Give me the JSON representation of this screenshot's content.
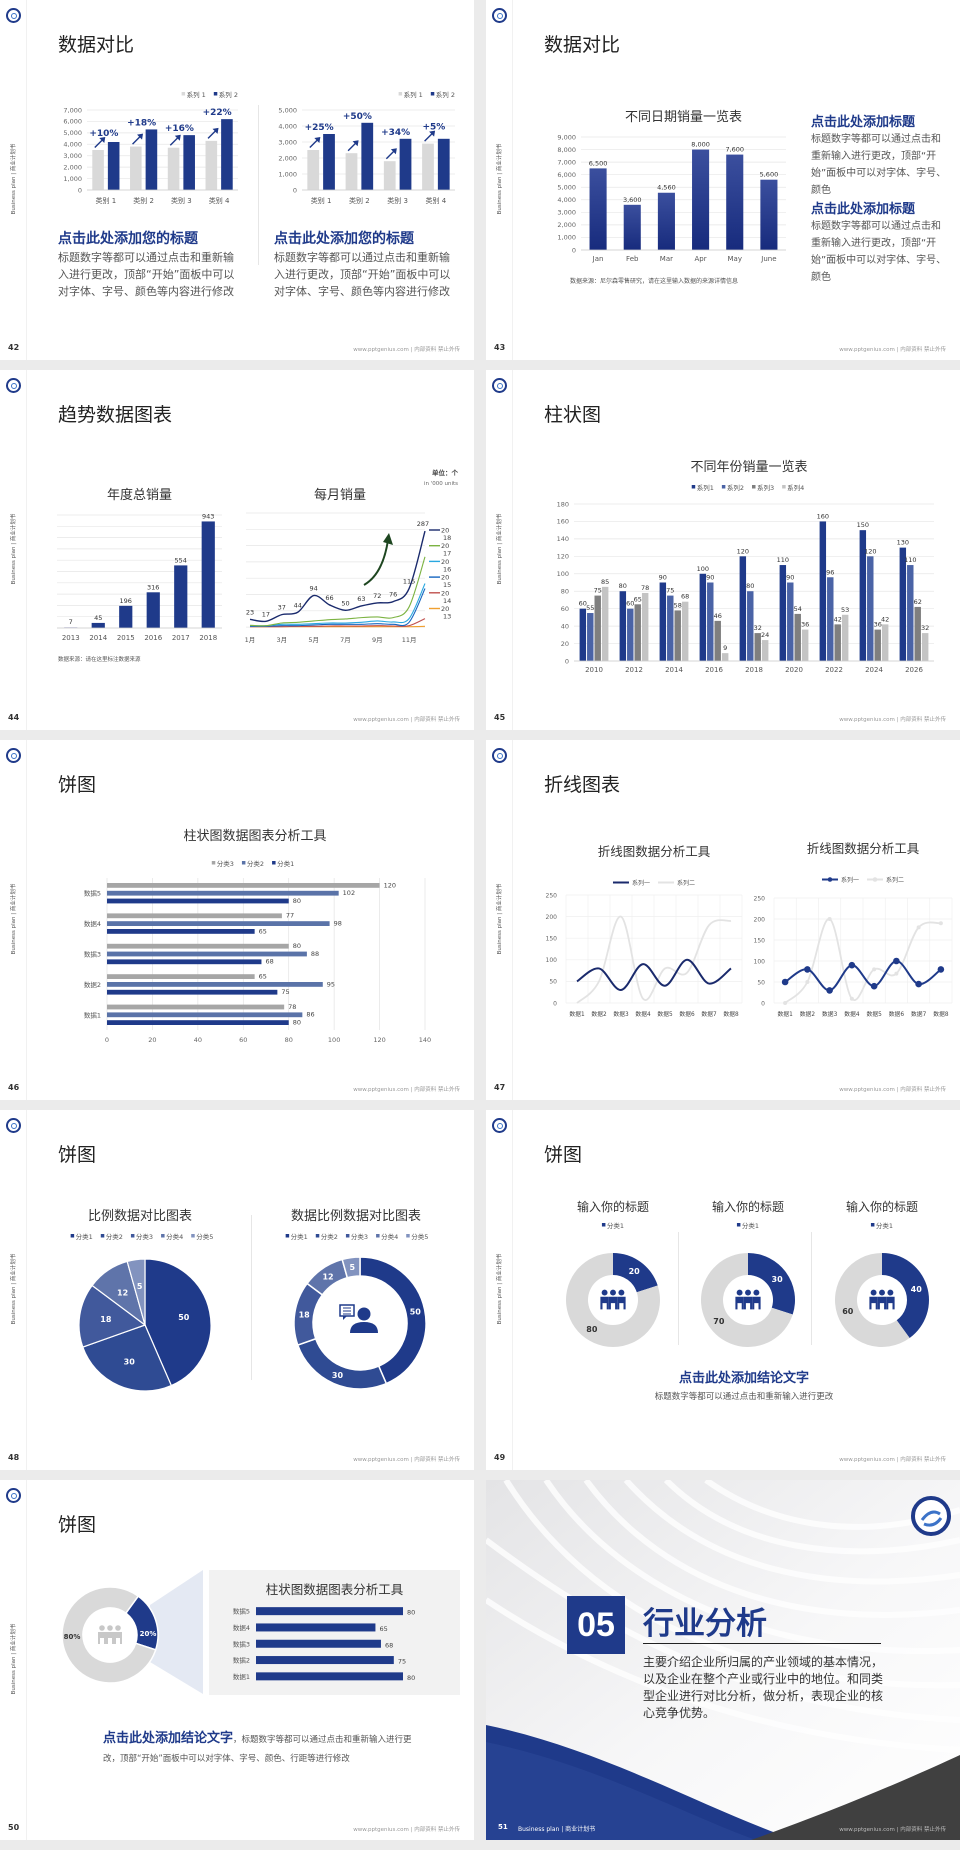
{
  "common": {
    "side_label": "Business plan | 商业计划书",
    "footer": "www.pptgenius.com | 内部资料 禁止外传",
    "accent": "#1f3a8a"
  },
  "slide42": {
    "page": "42",
    "title": "数据对比",
    "blocks": [
      {
        "heading": "点击此处添加您的标题",
        "body": "标题数字等都可以通过点击和重新输入进行更改，顶部“开始”面板中可以对字体、字号、颜色等内容进行修改"
      },
      {
        "heading": "点击此处添加您的标题",
        "body": "标题数字等都可以通过点击和重新输入进行更改，顶部“开始”面板中可以对字体、字号、颜色等内容进行修改"
      }
    ]
  },
  "slide43": {
    "page": "43",
    "title": "数据对比",
    "source": "数据来源：尼尔森零售研究，请在这里输入数据的来源详情信息",
    "blocks": [
      {
        "heading": "点击此处添加标题",
        "body": "标题数字等都可以通过点击和重新输入进行更改，顶部“开始”面板中可以对字体、字号、颜色"
      },
      {
        "heading": "点击此处添加标题",
        "body": "标题数字等都可以通过点击和重新输入进行更改，顶部“开始”面板中可以对字体、字号、颜色"
      }
    ]
  },
  "slide44": {
    "page": "44",
    "title": "趋势数据图表",
    "source": "数据来源：请在这里标注数据来源",
    "unit": "单位：个",
    "unit_en": "in '000 units"
  },
  "slide45": {
    "page": "45",
    "title": "柱状图"
  },
  "slide46": {
    "page": "46",
    "title": "饼图"
  },
  "slide47": {
    "page": "47",
    "title": "折线图表"
  },
  "slide48": {
    "page": "48",
    "title": "饼图"
  },
  "slide49": {
    "page": "49",
    "title": "饼图",
    "heading": "点击此处添加结论文字",
    "body": "标题数字等都可以通过点击和重新输入进行更改"
  },
  "slide50": {
    "page": "50",
    "title": "饼图",
    "heading": "点击此处添加结论文字",
    "body": "，标题数字等都可以通过点击和重新输入进行更改，顶部“开始”面板中可以对字体、字号、颜色、行距等进行修改"
  },
  "slide51": {
    "page": "51",
    "number": "05",
    "title": "行业分析",
    "body": "主要介绍企业所归属的产业领域的基本情况，以及企业在整个产业或行业中的地位。和同类型企业进行对比分析，做分析，表现企业的核心竞争优势。",
    "footer_left": "Business plan | 商业计划书"
  },
  "chart_data": [
    {
      "type": "bar",
      "categories": [
        "类别 1",
        "类别 2",
        "类别 3",
        "类别 4"
      ],
      "series": [
        {
          "name": "系列 1",
          "values": [
            3500,
            3800,
            3700,
            4300
          ]
        },
        {
          "name": "系列 2",
          "values": [
            4200,
            5300,
            4800,
            6200
          ]
        }
      ],
      "annotations": [
        "+10%",
        "+18%",
        "+16%",
        "+22%"
      ],
      "ylim": [
        0,
        7000
      ],
      "yticks": [
        0,
        1000,
        2000,
        3000,
        4000,
        5000,
        6000,
        7000
      ],
      "colors": [
        "#d9d9d9",
        "#1f3a8a"
      ],
      "legend": "top-right"
    },
    {
      "type": "bar",
      "categories": [
        "类别 1",
        "类别 2",
        "类别 3",
        "类别 4"
      ],
      "series": [
        {
          "name": "系列 1",
          "values": [
            2500,
            2300,
            1800,
            2900
          ]
        },
        {
          "name": "系列 2",
          "values": [
            3500,
            4200,
            3200,
            3200
          ]
        }
      ],
      "annotations": [
        "+25%",
        "+50%",
        "+34%",
        "+5%"
      ],
      "ylim": [
        0,
        5000
      ],
      "yticks": [
        0,
        1000,
        2000,
        3000,
        4000,
        5000
      ],
      "colors": [
        "#d9d9d9",
        "#1f3a8a"
      ],
      "legend": "top-right"
    },
    {
      "type": "bar",
      "title": "不同日期销量一览表",
      "categories": [
        "Jan",
        "Feb",
        "Mar",
        "Apr",
        "May",
        "June"
      ],
      "values": [
        6500,
        3600,
        4560,
        8000,
        7600,
        5600
      ],
      "ylim": [
        0,
        9000
      ],
      "yticks": [
        0,
        1000,
        2000,
        3000,
        4000,
        5000,
        6000,
        7000,
        8000,
        9000
      ],
      "data_labels": true
    },
    {
      "type": "bar",
      "title": "年度总销量",
      "categories": [
        "2013",
        "2014",
        "2015",
        "2016",
        "2017",
        "2018"
      ],
      "values": [
        7,
        45,
        196,
        316,
        554,
        943
      ],
      "ylim": [
        0,
        1000
      ],
      "grid": true,
      "data_labels": true
    },
    {
      "type": "line",
      "title": "每月销量",
      "x_ticks": [
        "1月",
        "3月",
        "5月",
        "7月",
        "9月",
        "11月"
      ],
      "ylim": [
        0,
        320
      ],
      "grid": true,
      "series": [
        {
          "name": "2018",
          "color": "#1a2a6c",
          "values": [
            23,
            17,
            37,
            44,
            94,
            66,
            50,
            63,
            72,
            76,
            115,
            287
          ],
          "data_labels": true
        },
        {
          "name": "2017",
          "color": "#7cb342",
          "values": [
            5,
            4,
            12,
            14,
            18,
            22,
            24,
            28,
            30,
            28,
            60,
            210
          ]
        },
        {
          "name": "2016",
          "color": "#29a8e0",
          "values": [
            4,
            4,
            8,
            8,
            10,
            12,
            12,
            14,
            18,
            15,
            25,
            130
          ]
        },
        {
          "name": "2015",
          "color": "#1565c0",
          "values": [
            2,
            2,
            4,
            4,
            6,
            8,
            8,
            8,
            10,
            8,
            14,
            115
          ]
        },
        {
          "name": "2014",
          "color": "#c0504d",
          "values": [
            1,
            1,
            1,
            2,
            2,
            3,
            3,
            3,
            4,
            3,
            4,
            25
          ]
        },
        {
          "name": "2013",
          "color": "#f0a030",
          "values": [
            1,
            1,
            1,
            1,
            1,
            1,
            1,
            1,
            1,
            1,
            1,
            2
          ]
        }
      ],
      "legend": "right"
    },
    {
      "type": "bar",
      "title": "不同年份销量一览表",
      "categories": [
        "2010",
        "2012",
        "2014",
        "2016",
        "2018",
        "2020",
        "2022",
        "2024",
        "2026"
      ],
      "series": [
        {
          "name": "系列1",
          "values": [
            60,
            80,
            90,
            100,
            120,
            110,
            160,
            150,
            130
          ]
        },
        {
          "name": "系列2",
          "values": [
            55,
            60,
            75,
            90,
            80,
            90,
            96,
            120,
            110
          ]
        },
        {
          "name": "系列3",
          "values": [
            75,
            65,
            58,
            46,
            32,
            54,
            42,
            36,
            62
          ]
        },
        {
          "name": "系列4",
          "values": [
            85,
            78,
            68,
            9,
            24,
            36,
            53,
            42,
            32
          ]
        }
      ],
      "ylim": [
        0,
        180
      ],
      "yticks": [
        0,
        20,
        40,
        60,
        80,
        100,
        120,
        140,
        160,
        180
      ],
      "colors": [
        "#1f3a8a",
        "#4a63a6",
        "#7f7f7f",
        "#c4c4c4"
      ],
      "data_labels": true,
      "legend": "top"
    },
    {
      "type": "bar",
      "orientation": "horizontal",
      "title": "柱状图数据图表分析工具",
      "categories": [
        "数据1",
        "数据2",
        "数据3",
        "数据4",
        "数据5"
      ],
      "series": [
        {
          "name": "分类1",
          "values": [
            80,
            75,
            68,
            65,
            80
          ]
        },
        {
          "name": "分类2",
          "values": [
            86,
            95,
            88,
            98,
            102
          ]
        },
        {
          "name": "分类3",
          "values": [
            78,
            65,
            80,
            77,
            120
          ]
        }
      ],
      "xlim": [
        0,
        140
      ],
      "xticks": [
        0,
        20,
        40,
        60,
        80,
        100,
        120,
        140
      ],
      "colors": [
        "#1f3a8a",
        "#5a73a8",
        "#a6a6a6"
      ],
      "data_labels": true,
      "legend": "top"
    },
    {
      "type": "line",
      "title": "折线图数据分析工具",
      "categories": [
        "数据1",
        "数据2",
        "数据3",
        "数据4",
        "数据5",
        "数据6",
        "数据7",
        "数据8"
      ],
      "series": [
        {
          "name": "系列一",
          "values": [
            50,
            80,
            30,
            90,
            40,
            100,
            45,
            80
          ],
          "color": "#1a2a6c"
        },
        {
          "name": "系列二",
          "values": [
            0,
            50,
            200,
            10,
            80,
            70,
            180,
            190
          ],
          "color": "#e3e3e3"
        }
      ],
      "ylim": [
        0,
        250
      ],
      "yticks": [
        0,
        50,
        100,
        150,
        200,
        250
      ],
      "markers": false,
      "legend": "top"
    },
    {
      "type": "line",
      "title": "折线图数据分析工具",
      "categories": [
        "数据1",
        "数据2",
        "数据3",
        "数据4",
        "数据5",
        "数据6",
        "数据7",
        "数据8"
      ],
      "series": [
        {
          "name": "系列一",
          "values": [
            50,
            80,
            30,
            90,
            40,
            100,
            45,
            80
          ],
          "color": "#1f3a8a"
        },
        {
          "name": "系列二",
          "values": [
            0,
            50,
            200,
            10,
            80,
            70,
            180,
            190
          ],
          "color": "#e3e3e3"
        }
      ],
      "ylim": [
        0,
        250
      ],
      "yticks": [
        0,
        50,
        100,
        150,
        200,
        250
      ],
      "markers": true,
      "legend": "top"
    },
    {
      "type": "pie",
      "title": "比例数据对比图表",
      "labels": [
        "分类1",
        "分类2",
        "分类3",
        "分类4",
        "分类5"
      ],
      "values": [
        50,
        30,
        18,
        12,
        5
      ],
      "colors": [
        "#1f3a8a",
        "#2f4b93",
        "#41599c",
        "#5f74aa",
        "#8293bf"
      ],
      "legend": "top"
    },
    {
      "type": "pie",
      "donut": true,
      "title": "数据比例数据对比图表",
      "labels": [
        "分类1",
        "分类2",
        "分类3",
        "分类4",
        "分类5"
      ],
      "values": [
        50,
        30,
        18,
        12,
        5
      ],
      "colors": [
        "#1f3a8a",
        "#2f4b93",
        "#41599c",
        "#5f74aa",
        "#8293bf"
      ],
      "legend": "top"
    },
    {
      "type": "pie",
      "donut": true,
      "title": "输入你的标题",
      "legend_label": "分类1",
      "values": [
        20,
        80
      ],
      "colors": [
        "#1f3a8a",
        "#d9d9d9"
      ]
    },
    {
      "type": "pie",
      "donut": true,
      "title": "输入你的标题",
      "legend_label": "分类1",
      "values": [
        30,
        70
      ],
      "colors": [
        "#1f3a8a",
        "#d9d9d9"
      ]
    },
    {
      "type": "pie",
      "donut": true,
      "title": "输入你的标题",
      "legend_label": "分类1",
      "values": [
        40,
        60
      ],
      "colors": [
        "#1f3a8a",
        "#d9d9d9"
      ]
    },
    {
      "type": "pie",
      "donut": true,
      "values": [
        20,
        80
      ],
      "value_labels": [
        "20%",
        "80%"
      ],
      "colors": [
        "#1f3a8a",
        "#d9d9d9"
      ]
    },
    {
      "type": "bar",
      "orientation": "horizontal",
      "title": "柱状图数据图表分析工具",
      "categories": [
        "数据1",
        "数据2",
        "数据3",
        "数据4",
        "数据5"
      ],
      "values": [
        80,
        75,
        68,
        65,
        80
      ],
      "xlim": [
        0,
        80
      ],
      "colors": [
        "#1f3a8a"
      ],
      "data_labels": true
    }
  ]
}
